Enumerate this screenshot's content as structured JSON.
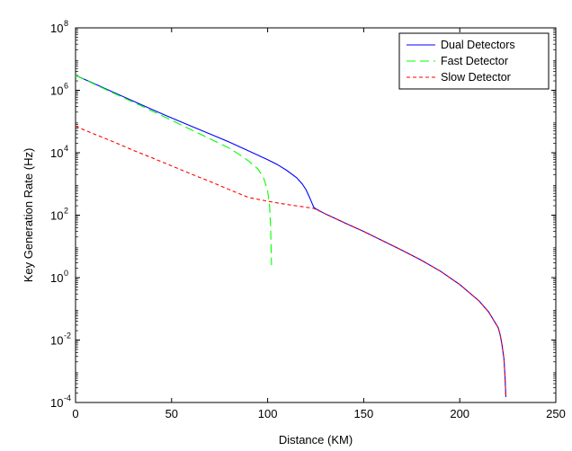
{
  "chart_data": {
    "type": "line",
    "xlabel": "Distance (KM)",
    "ylabel": "Key Generation Rate (Hz)",
    "xlim": [
      0,
      250
    ],
    "ylim_exponents": [
      -4,
      8
    ],
    "y_scale": "log",
    "y_tick_base": "10",
    "x_ticks": [
      0,
      50,
      100,
      150,
      200,
      250
    ],
    "y_tick_exponents": [
      "-4",
      "-2",
      "0",
      "2",
      "4",
      "6",
      "8"
    ],
    "grid": false,
    "legend_position": "top-right",
    "series": [
      {
        "name": "Dual Detectors",
        "color": "#0000ff",
        "dash": "solid",
        "points": [
          [
            0,
            3000000
          ],
          [
            10,
            1600000
          ],
          [
            20,
            850000
          ],
          [
            30,
            450000
          ],
          [
            40,
            240000
          ],
          [
            50,
            130000
          ],
          [
            60,
            72000
          ],
          [
            70,
            40000
          ],
          [
            80,
            22000
          ],
          [
            90,
            11500
          ],
          [
            100,
            6000
          ],
          [
            105,
            4200
          ],
          [
            110,
            2700
          ],
          [
            115,
            1600
          ],
          [
            118,
            1000
          ],
          [
            120,
            650
          ],
          [
            122,
            350
          ],
          [
            123,
            250
          ],
          [
            124,
            180
          ],
          [
            125,
            160
          ],
          [
            130,
            110
          ],
          [
            140,
            57
          ],
          [
            150,
            30
          ],
          [
            160,
            15
          ],
          [
            170,
            7.5
          ],
          [
            180,
            3.6
          ],
          [
            190,
            1.6
          ],
          [
            200,
            0.6
          ],
          [
            210,
            0.18
          ],
          [
            215,
            0.08
          ],
          [
            220,
            0.025
          ],
          [
            221,
            0.015
          ],
          [
            222,
            0.007
          ],
          [
            223,
            0.0025
          ],
          [
            223.5,
            0.0008
          ],
          [
            224,
            0.00015
          ]
        ]
      },
      {
        "name": "Fast Detector",
        "color": "#00ff00",
        "dash": "long-dash",
        "points": [
          [
            0,
            3000000
          ],
          [
            10,
            1550000
          ],
          [
            20,
            800000
          ],
          [
            30,
            420000
          ],
          [
            40,
            215000
          ],
          [
            50,
            110000
          ],
          [
            60,
            55000
          ],
          [
            70,
            28000
          ],
          [
            80,
            14000
          ],
          [
            85,
            9000
          ],
          [
            90,
            5500
          ],
          [
            95,
            3000
          ],
          [
            98,
            1500
          ],
          [
            100,
            600
          ],
          [
            101,
            200
          ],
          [
            101.5,
            50
          ],
          [
            102,
            2.5
          ]
        ]
      },
      {
        "name": "Slow Detector",
        "color": "#ff0000",
        "dash": "short-dash",
        "points": [
          [
            0,
            70000
          ],
          [
            10,
            39000
          ],
          [
            20,
            22000
          ],
          [
            30,
            12000
          ],
          [
            40,
            6800
          ],
          [
            50,
            3800
          ],
          [
            60,
            2100
          ],
          [
            70,
            1200
          ],
          [
            80,
            660
          ],
          [
            90,
            370
          ],
          [
            100,
            280
          ],
          [
            110,
            220
          ],
          [
            120,
            180
          ],
          [
            124,
            165
          ],
          [
            130,
            110
          ],
          [
            140,
            57
          ],
          [
            150,
            30
          ],
          [
            160,
            15
          ],
          [
            170,
            7.5
          ],
          [
            180,
            3.6
          ],
          [
            190,
            1.6
          ],
          [
            200,
            0.6
          ],
          [
            210,
            0.18
          ],
          [
            215,
            0.08
          ],
          [
            220,
            0.025
          ],
          [
            221,
            0.015
          ],
          [
            222,
            0.007
          ],
          [
            223,
            0.0025
          ],
          [
            223.5,
            0.0008
          ],
          [
            224,
            0.00015
          ]
        ]
      }
    ]
  }
}
